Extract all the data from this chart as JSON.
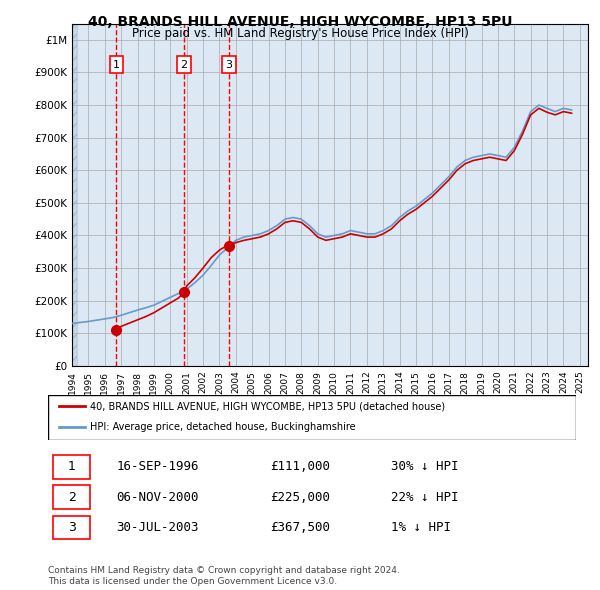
{
  "title_line1": "40, BRANDS HILL AVENUE, HIGH WYCOMBE, HP13 5PU",
  "title_line2": "Price paid vs. HM Land Registry's House Price Index (HPI)",
  "xlabel": "",
  "ylabel": "",
  "ylim": [
    0,
    1050000
  ],
  "xlim_start": 1994.0,
  "xlim_end": 2025.5,
  "background_plot": "#dce9f5",
  "background_hatched": "#c8d8e8",
  "grid_color": "#aaaaaa",
  "red_line_color": "#cc0000",
  "blue_line_color": "#6699cc",
  "sale_dates": [
    1996.71,
    2000.84,
    2003.58
  ],
  "sale_prices": [
    111000,
    225000,
    367500
  ],
  "sale_labels": [
    "1",
    "2",
    "3"
  ],
  "legend_label_red": "40, BRANDS HILL AVENUE, HIGH WYCOMBE, HP13 5PU (detached house)",
  "legend_label_blue": "HPI: Average price, detached house, Buckinghamshire",
  "table_rows": [
    [
      "1",
      "16-SEP-1996",
      "£111,000",
      "30% ↓ HPI"
    ],
    [
      "2",
      "06-NOV-2000",
      "£225,000",
      "22% ↓ HPI"
    ],
    [
      "3",
      "30-JUL-2003",
      "£367,500",
      "1% ↓ HPI"
    ]
  ],
  "footnote": "Contains HM Land Registry data © Crown copyright and database right 2024.\nThis data is licensed under the Open Government Licence v3.0.",
  "yticks": [
    0,
    100000,
    200000,
    300000,
    400000,
    500000,
    600000,
    700000,
    800000,
    900000,
    1000000
  ],
  "ytick_labels": [
    "£0",
    "£100K",
    "£200K",
    "£300K",
    "£400K",
    "£500K",
    "£600K",
    "£700K",
    "£800K",
    "£900K",
    "£1M"
  ],
  "xticks": [
    1994,
    1995,
    1996,
    1997,
    1998,
    1999,
    2000,
    2001,
    2002,
    2003,
    2004,
    2005,
    2006,
    2007,
    2008,
    2009,
    2010,
    2011,
    2012,
    2013,
    2014,
    2015,
    2016,
    2017,
    2018,
    2019,
    2020,
    2021,
    2022,
    2023,
    2024,
    2025
  ],
  "hpi_years": [
    1994.0,
    1994.5,
    1995.0,
    1995.5,
    1996.0,
    1996.5,
    1997.0,
    1997.5,
    1998.0,
    1998.5,
    1999.0,
    1999.5,
    2000.0,
    2000.5,
    2001.0,
    2001.5,
    2002.0,
    2002.5,
    2003.0,
    2003.5,
    2004.0,
    2004.5,
    2005.0,
    2005.5,
    2006.0,
    2006.5,
    2007.0,
    2007.5,
    2008.0,
    2008.5,
    2009.0,
    2009.5,
    2010.0,
    2010.5,
    2011.0,
    2011.5,
    2012.0,
    2012.5,
    2013.0,
    2013.5,
    2014.0,
    2014.5,
    2015.0,
    2015.5,
    2016.0,
    2016.5,
    2017.0,
    2017.5,
    2018.0,
    2018.5,
    2019.0,
    2019.5,
    2020.0,
    2020.5,
    2021.0,
    2021.5,
    2022.0,
    2022.5,
    2023.0,
    2023.5,
    2024.0,
    2024.5
  ],
  "hpi_values": [
    130000,
    133000,
    136000,
    140000,
    144000,
    148000,
    155000,
    163000,
    171000,
    178000,
    186000,
    198000,
    210000,
    222000,
    235000,
    255000,
    278000,
    308000,
    340000,
    362000,
    385000,
    395000,
    400000,
    405000,
    415000,
    430000,
    450000,
    455000,
    450000,
    430000,
    405000,
    395000,
    400000,
    405000,
    415000,
    410000,
    405000,
    405000,
    415000,
    430000,
    455000,
    475000,
    490000,
    510000,
    530000,
    555000,
    580000,
    610000,
    630000,
    640000,
    645000,
    650000,
    645000,
    640000,
    670000,
    720000,
    780000,
    800000,
    790000,
    780000,
    790000,
    785000
  ],
  "red_line_years": [
    1994.0,
    1994.5,
    1995.0,
    1995.5,
    1996.0,
    1996.5,
    1996.71,
    1997.0,
    1997.5,
    1998.0,
    1998.5,
    1999.0,
    1999.5,
    2000.0,
    2000.5,
    2000.84,
    2001.0,
    2001.5,
    2002.0,
    2002.5,
    2003.0,
    2003.5,
    2003.58,
    2004.0,
    2004.5,
    2005.0,
    2005.5,
    2006.0,
    2006.5,
    2007.0,
    2007.5,
    2008.0,
    2008.5,
    2009.0,
    2009.5,
    2010.0,
    2010.5,
    2011.0,
    2011.5,
    2012.0,
    2012.5,
    2013.0,
    2013.5,
    2014.0,
    2014.5,
    2015.0,
    2015.5,
    2016.0,
    2016.5,
    2017.0,
    2017.5,
    2018.0,
    2018.5,
    2019.0,
    2019.5,
    2020.0,
    2020.5,
    2021.0,
    2021.5,
    2022.0,
    2022.5,
    2023.0,
    2023.5,
    2024.0,
    2024.5
  ],
  "red_line_values": [
    null,
    null,
    null,
    null,
    null,
    null,
    111000,
    121000,
    131000,
    141000,
    151000,
    163000,
    178000,
    193000,
    208000,
    225000,
    245000,
    270000,
    300000,
    332000,
    355000,
    370000,
    367500,
    378000,
    385000,
    390000,
    395000,
    405000,
    420000,
    440000,
    445000,
    440000,
    420000,
    395000,
    385000,
    390000,
    395000,
    405000,
    400000,
    395000,
    395000,
    405000,
    420000,
    445000,
    465000,
    480000,
    500000,
    520000,
    545000,
    570000,
    600000,
    620000,
    630000,
    635000,
    640000,
    635000,
    630000,
    660000,
    710000,
    770000,
    790000,
    778000,
    770000,
    780000,
    775000
  ]
}
